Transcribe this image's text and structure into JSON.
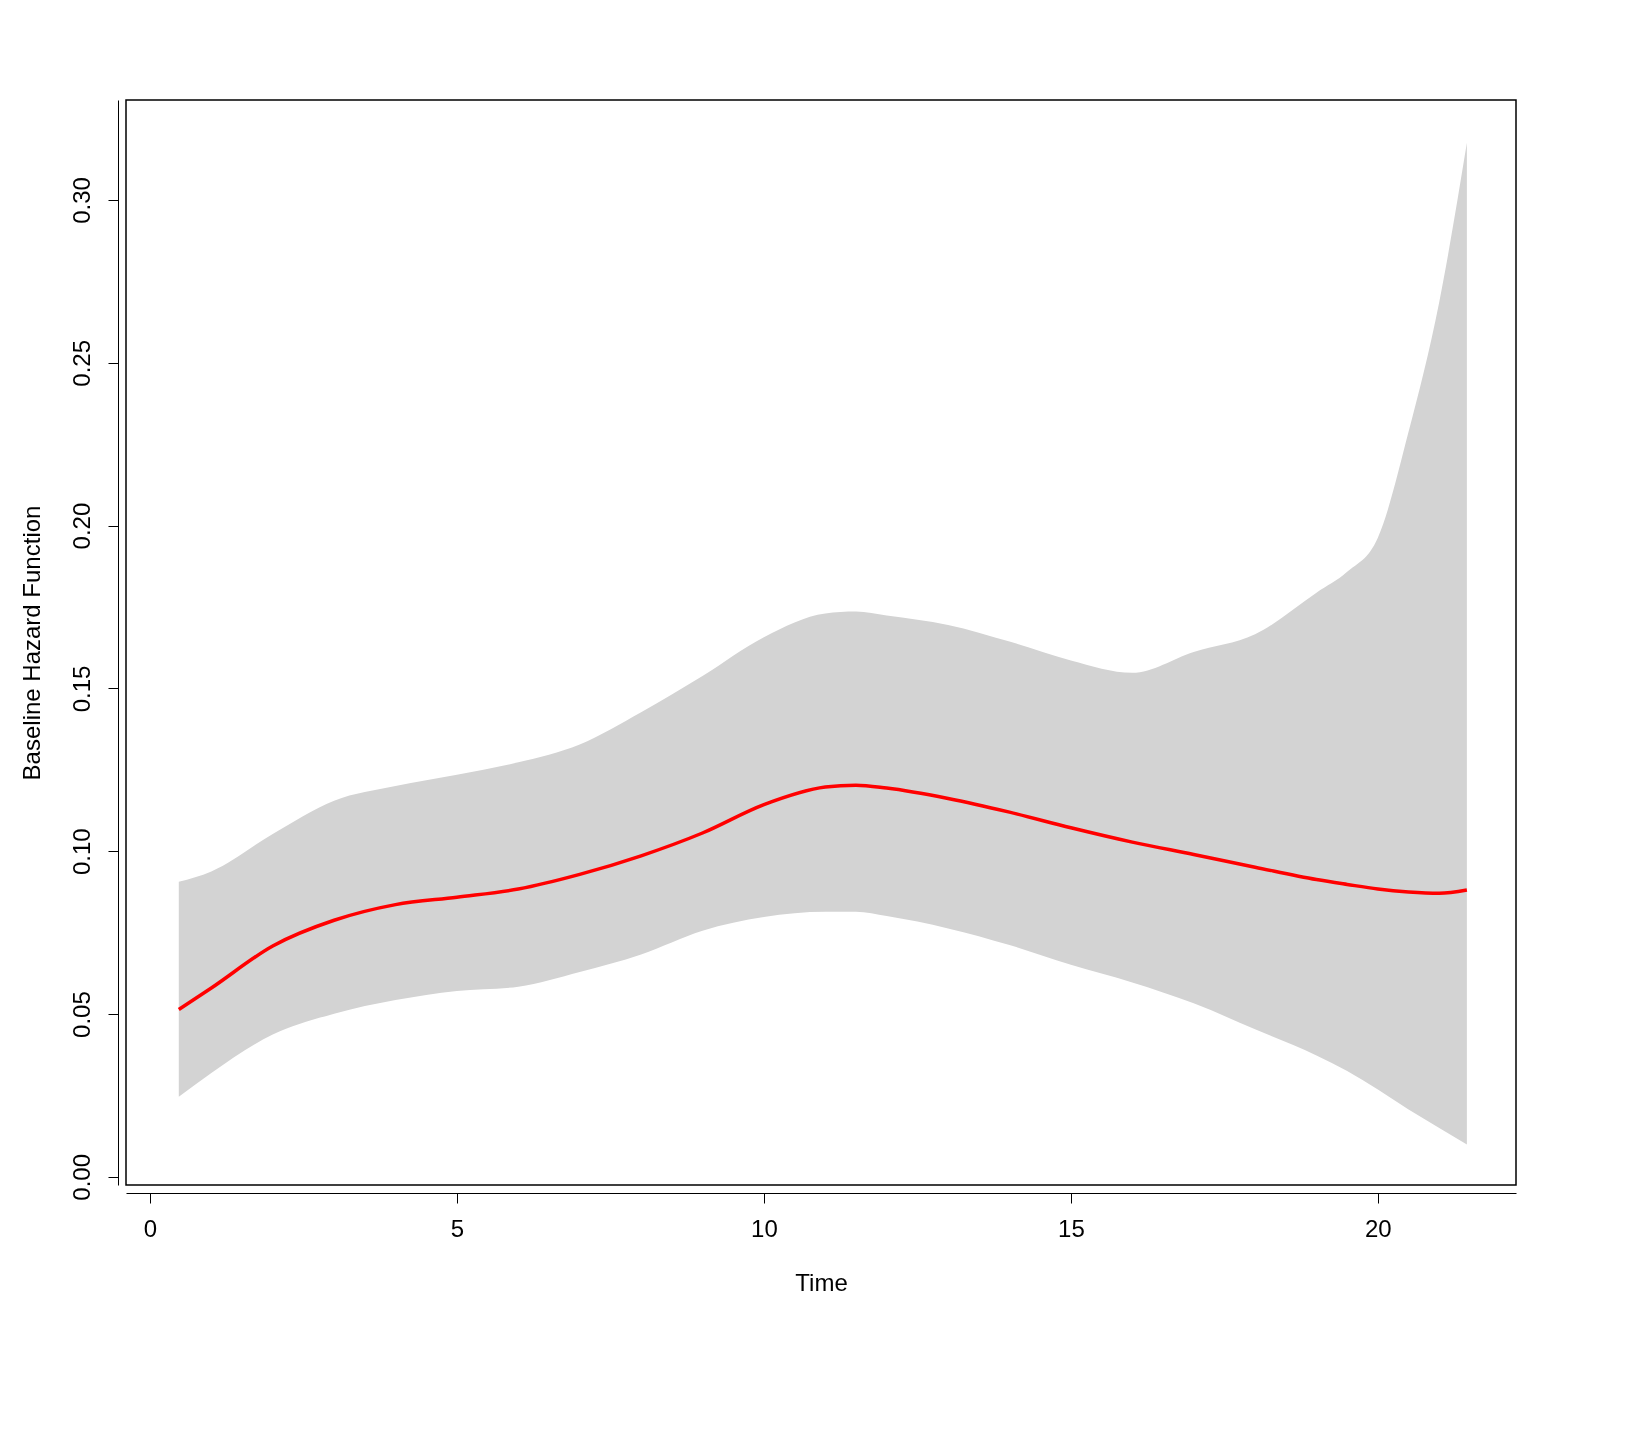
{
  "chart_data": {
    "type": "line",
    "xlabel": "Time",
    "ylabel": "Baseline Hazard Function",
    "x": [
      0.47,
      1,
      2,
      3,
      4,
      5,
      6,
      7,
      8,
      9,
      10,
      11,
      11.5,
      12,
      13,
      14,
      15,
      16,
      17,
      18,
      19,
      19.5,
      20,
      20.5,
      21,
      21.45
    ],
    "series": [
      {
        "color": "#ff0000",
        "values": [
          0.0514,
          0.058,
          0.0709,
          0.0788,
          0.0836,
          0.0859,
          0.0884,
          0.0929,
          0.0986,
          0.1056,
          0.1143,
          0.1197,
          0.1203,
          0.1194,
          0.1162,
          0.112,
          0.1072,
          0.1028,
          0.099,
          0.0951,
          0.0913,
          0.0898,
          0.0884,
          0.0875,
          0.0871,
          0.0881
        ],
        "lower": [
          0.0246,
          0.0319,
          0.0437,
          0.0501,
          0.0543,
          0.0571,
          0.0584,
          0.0629,
          0.0683,
          0.0756,
          0.0798,
          0.0814,
          0.0814,
          0.0801,
          0.0763,
          0.0712,
          0.0651,
          0.0597,
          0.0533,
          0.0453,
          0.0373,
          0.0325,
          0.0268,
          0.0207,
          0.015,
          0.0099
        ],
        "upper": [
          0.0906,
          0.0938,
          0.1053,
          0.1155,
          0.12,
          0.1235,
          0.1273,
          0.1328,
          0.1427,
          0.1538,
          0.1657,
          0.173,
          0.1736,
          0.1724,
          0.1695,
          0.1644,
          0.1586,
          0.1548,
          0.1612,
          0.1666,
          0.1794,
          0.1858,
          0.1963,
          0.2288,
          0.2687,
          0.3176
        ]
      }
    ],
    "xlim": [
      -0.39,
      22.25
    ],
    "ylim": [
      -0.0025,
      0.3307
    ],
    "xticks": [
      0,
      5,
      10,
      15,
      20
    ],
    "yticks": [
      {
        "value": 0,
        "label": "0.00"
      },
      0.05,
      {
        "value": 0.1,
        "label": "0.10"
      },
      0.15,
      {
        "value": 0.2,
        "label": "0.20"
      },
      0.25,
      {
        "value": 0.3,
        "label": "0.30"
      }
    ],
    "grid": false
  }
}
